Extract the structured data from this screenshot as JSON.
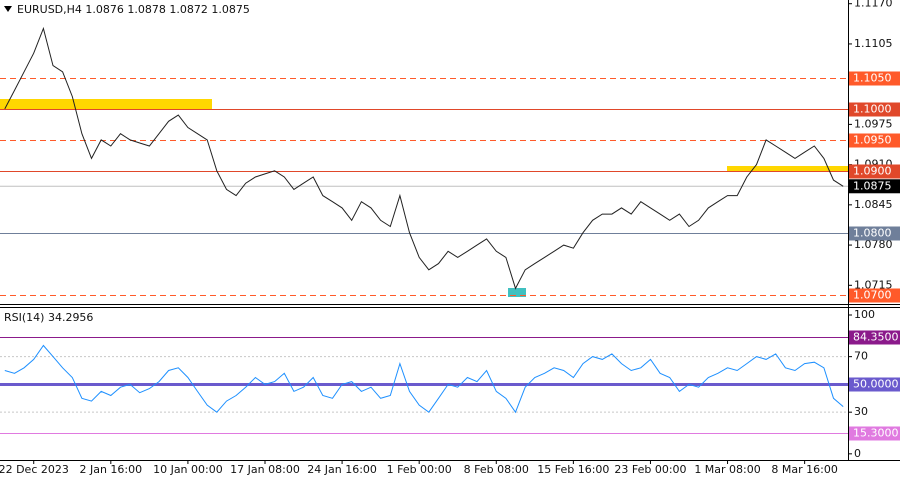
{
  "chart_data": [
    {
      "type": "line",
      "title": "EURUSD,H4  1.0876 1.0878 1.0872 1.0875",
      "color": "#222222",
      "categories": [
        null,
        null,
        null,
        "22 Dec 2023",
        null,
        null,
        null,
        null,
        null,
        null,
        null,
        "2 Jan 16:00",
        null,
        null,
        null,
        null,
        null,
        null,
        null,
        "10 Jan 00:00",
        null,
        null,
        null,
        null,
        null,
        null,
        null,
        "17 Jan 08:00",
        null,
        null,
        null,
        null,
        null,
        null,
        null,
        "24 Jan 16:00",
        null,
        null,
        null,
        null,
        null,
        null,
        null,
        "1 Feb 00:00",
        null,
        null,
        null,
        null,
        null,
        null,
        null,
        "8 Feb 08:00",
        null,
        null,
        null,
        null,
        null,
        null,
        null,
        "15 Feb 16:00",
        null,
        null,
        null,
        null,
        null,
        null,
        null,
        "23 Feb 00:00",
        null,
        null,
        null,
        null,
        null,
        null,
        null,
        "1 Mar 08:00",
        null,
        null,
        null,
        null,
        null,
        null,
        null,
        "8 Mar 16:00",
        null,
        null,
        null,
        null
      ],
      "values": [
        1.1,
        1.103,
        1.106,
        1.109,
        1.113,
        1.107,
        1.106,
        1.102,
        1.096,
        1.092,
        1.095,
        1.094,
        1.096,
        1.095,
        1.0945,
        1.094,
        1.096,
        1.098,
        1.099,
        1.097,
        1.096,
        1.095,
        1.09,
        1.087,
        1.086,
        1.088,
        1.089,
        1.0895,
        1.09,
        1.089,
        1.087,
        1.088,
        1.089,
        1.086,
        1.085,
        1.084,
        1.082,
        1.085,
        1.084,
        1.082,
        1.081,
        1.086,
        1.08,
        1.076,
        1.074,
        1.075,
        1.077,
        1.076,
        1.077,
        1.078,
        1.079,
        1.077,
        1.076,
        1.071,
        1.074,
        1.075,
        1.076,
        1.077,
        1.078,
        1.0775,
        1.08,
        1.082,
        1.083,
        1.083,
        1.084,
        1.083,
        1.085,
        1.084,
        1.083,
        1.082,
        1.083,
        1.081,
        1.082,
        1.084,
        1.085,
        1.086,
        1.086,
        1.089,
        1.091,
        1.095,
        1.094,
        1.093,
        1.092,
        1.093,
        1.094,
        1.092,
        1.0885,
        1.0875
      ],
      "ylim": [
        1.0688,
        1.1176
      ],
      "yticks": [
        {
          "value": 1.117,
          "label": "1.1170"
        },
        1.1105,
        1.0975,
        {
          "value": 1.091,
          "label": "1.0910"
        },
        1.0845,
        {
          "value": 1.078,
          "label": "1.0780"
        },
        1.0715
      ],
      "levels": [
        {
          "value": 1.105,
          "label": "1.1050",
          "color": "#ff5a2a",
          "dashed": true
        },
        {
          "value": 1.1,
          "label": "1.1000",
          "color": "#e0482a",
          "dashed": false
        },
        {
          "value": 1.095,
          "label": "1.0950",
          "color": "#ff5a2a",
          "dashed": true
        },
        {
          "value": 1.09,
          "label": "1.0900",
          "color": "#e0482a",
          "dashed": false
        },
        {
          "value": 1.08,
          "label": "1.0800",
          "color": "#6f7f9a",
          "dashed": false
        },
        {
          "value": 1.07,
          "label": "1.0700",
          "color": "#ff5a2a",
          "dashed": true
        }
      ],
      "last": {
        "value": 1.0875,
        "label": "1.0875"
      }
    },
    {
      "type": "line",
      "title": "RSI(14) 34.2956",
      "color": "#1e90ff",
      "values": [
        60,
        58,
        62,
        68,
        78,
        70,
        62,
        55,
        40,
        38,
        45,
        42,
        48,
        50,
        44,
        47,
        52,
        60,
        62,
        55,
        45,
        35,
        30,
        38,
        42,
        48,
        55,
        50,
        52,
        58,
        45,
        48,
        55,
        42,
        40,
        50,
        52,
        45,
        48,
        40,
        42,
        65,
        45,
        35,
        30,
        40,
        50,
        48,
        55,
        52,
        60,
        45,
        40,
        30,
        48,
        55,
        58,
        62,
        60,
        55,
        65,
        70,
        68,
        72,
        65,
        60,
        62,
        68,
        58,
        55,
        45,
        50,
        48,
        55,
        58,
        62,
        60,
        65,
        70,
        68,
        72,
        62,
        60,
        65,
        66,
        62,
        40,
        34
      ],
      "ylim": [
        -3,
        103.6
      ],
      "yticks": [
        100,
        70,
        30,
        0
      ],
      "grid_at": [
        70,
        30
      ],
      "levels": [
        {
          "value": 84.35,
          "label": "84.3500",
          "color": "#8b1a8b",
          "dashed": false
        },
        {
          "value": 50,
          "label": "50.0000",
          "color": "#6a5acd",
          "dashed": false
        },
        {
          "value": 15.3,
          "label": "15.3000",
          "color": "#e07ae0",
          "dashed": false
        }
      ]
    }
  ]
}
